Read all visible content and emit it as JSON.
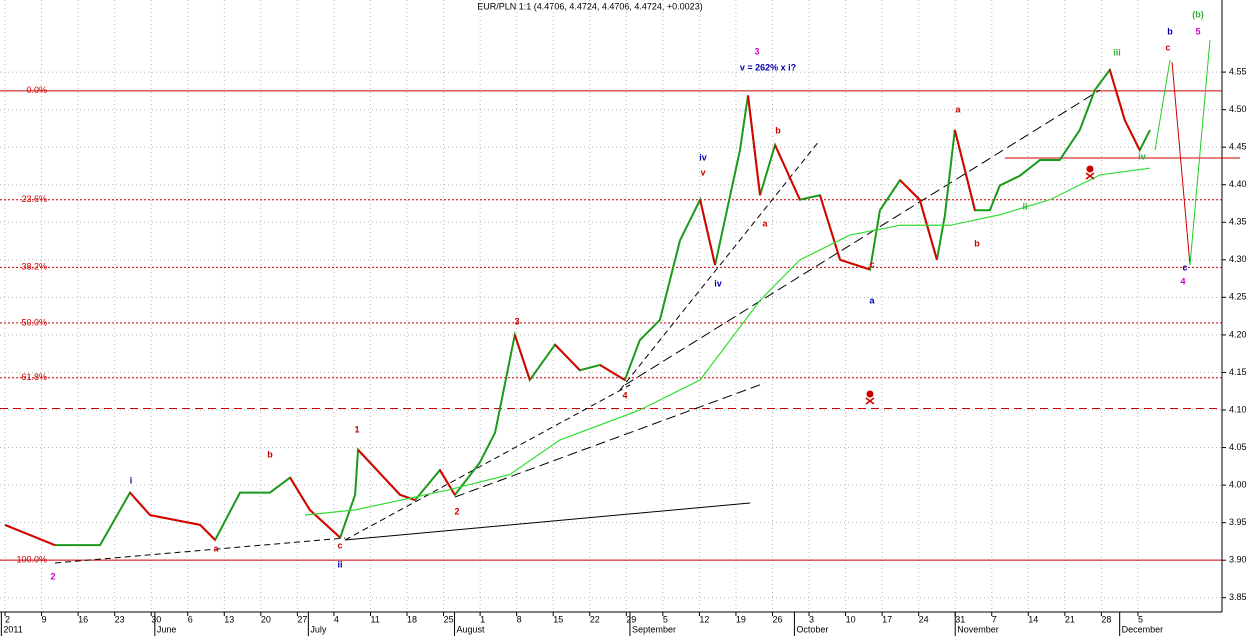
{
  "chart_data": {
    "type": "line",
    "title": "EUR/PLN 1:1 (4.4706, 4.4724, 4.4706, 4.4724, +0.0023)",
    "xlim": [
      -0.137,
      33.3
    ],
    "ylim": [
      3.831,
      4.646
    ],
    "yticks": [
      3.85,
      {
        "value": 3.9,
        "label": "3.90"
      },
      3.95,
      {
        "value": 4.0,
        "label": "4.00"
      },
      4.05,
      {
        "value": 4.1,
        "label": "4.10"
      },
      4.15,
      {
        "value": 4.2,
        "label": "4.20"
      },
      4.25,
      {
        "value": 4.3,
        "label": "4.30"
      },
      4.35,
      {
        "value": 4.4,
        "label": "4.40"
      },
      4.45,
      {
        "value": 4.5,
        "label": "4.50"
      },
      4.55
    ],
    "xticks": [
      {
        "value": 0,
        "label": "2"
      },
      {
        "value": 1,
        "label": "9"
      },
      {
        "value": 2,
        "label": "16"
      },
      {
        "value": 3,
        "label": "23"
      },
      {
        "value": 4,
        "label": "30"
      },
      {
        "value": 5,
        "label": "6"
      },
      {
        "value": 6,
        "label": "13"
      },
      {
        "value": 7,
        "label": "20"
      },
      {
        "value": 8,
        "label": "27"
      },
      {
        "value": 9,
        "label": "4"
      },
      {
        "value": 10,
        "label": "11"
      },
      {
        "value": 11,
        "label": "18"
      },
      {
        "value": 12,
        "label": "25"
      },
      {
        "value": 13,
        "label": "1"
      },
      {
        "value": 14,
        "label": "8"
      },
      {
        "value": 15,
        "label": "15"
      },
      {
        "value": 16,
        "label": "22"
      },
      {
        "value": 17,
        "label": "29"
      },
      {
        "value": 18,
        "label": "5"
      },
      {
        "value": 19,
        "label": "12"
      },
      {
        "value": 20,
        "label": "19"
      },
      {
        "value": 21,
        "label": "26"
      },
      {
        "value": 22,
        "label": "3"
      },
      {
        "value": 23,
        "label": "10"
      },
      {
        "value": 24,
        "label": "17"
      },
      {
        "value": 25,
        "label": "24"
      },
      {
        "value": 26,
        "label": "31"
      },
      {
        "value": 27,
        "label": "7"
      },
      {
        "value": 28,
        "label": "14"
      },
      {
        "value": 29,
        "label": "21"
      },
      {
        "value": 30,
        "label": "28"
      },
      {
        "value": 31,
        "label": "5"
      }
    ],
    "month_labels": [
      {
        "value": -0.1,
        "label": "2011"
      },
      {
        "value": 4.1,
        "label": "June"
      },
      {
        "value": 8.3,
        "label": "July"
      },
      {
        "value": 12.3,
        "label": "August"
      },
      {
        "value": 17.1,
        "label": "September"
      },
      {
        "value": 21.6,
        "label": "October"
      },
      {
        "value": 26.0,
        "label": "November"
      },
      {
        "value": 30.5,
        "label": "December"
      }
    ],
    "grid": true,
    "series": [
      {
        "color": "#1a9a1a",
        "down_color": "#dd0000",
        "x": [
          0,
          1.37,
          2.6,
          3.42,
          3.97,
          5.34,
          5.75,
          6.43,
          7.25,
          7.8,
          8.34,
          9.17,
          9.58,
          9.66,
          10.81,
          11.22,
          11.9,
          12.31,
          12.99,
          13.41,
          13.95,
          14.36,
          15.05,
          15.73,
          16.28,
          16.96,
          17.37,
          17.92,
          18.47,
          19.02,
          19.43,
          20.11,
          20.33,
          20.66,
          21.07,
          21.75,
          22.3,
          22.85,
          23.67,
          23.94,
          24.49,
          25.03,
          25.5,
          25.72,
          25.99,
          26.54,
          26.95,
          27.22,
          27.77,
          28.32,
          28.86,
          29.41,
          29.82,
          30.23,
          30.64,
          31.05,
          31.33
        ],
        "values": [
          3.947,
          3.92,
          3.92,
          3.99,
          3.96,
          3.947,
          3.927,
          3.99,
          3.99,
          4.01,
          3.967,
          3.93,
          3.987,
          4.047,
          3.987,
          3.98,
          4.02,
          3.987,
          4.03,
          4.07,
          4.2,
          4.14,
          4.187,
          4.153,
          4.16,
          4.14,
          4.193,
          4.22,
          4.326,
          4.38,
          4.293,
          4.446,
          4.519,
          4.386,
          4.453,
          4.38,
          4.386,
          4.3,
          4.287,
          4.366,
          4.406,
          4.38,
          4.3,
          4.36,
          4.473,
          4.366,
          4.366,
          4.399,
          4.412,
          4.433,
          4.433,
          4.473,
          4.526,
          4.553,
          4.486,
          4.446,
          4.473
        ]
      },
      {
        "color": "#33dd33",
        "x": [
          8.21,
          9.58,
          12.17,
          13.81,
          15.18,
          17.37,
          19.02,
          20.66,
          21.75,
          23.12,
          24.49,
          25.86,
          27.22,
          28.59,
          29.96,
          31.33
        ],
        "values": [
          3.96,
          3.967,
          3.994,
          4.014,
          4.06,
          4.1,
          4.14,
          4.246,
          4.3,
          4.333,
          4.346,
          4.346,
          4.36,
          4.38,
          4.413,
          4.422
        ]
      }
    ],
    "fib_levels": [
      {
        "value": 4.525,
        "label": "0.0%",
        "style": "solid"
      },
      {
        "value": 4.38,
        "label": "23.6%",
        "style": "dotted"
      },
      {
        "value": 4.29,
        "label": "38.2%",
        "style": "dotted"
      },
      {
        "value": 4.216,
        "label": "50.0%",
        "style": "dotted"
      },
      {
        "value": 4.143,
        "label": "61.8%",
        "style": "dotted"
      },
      {
        "value": 3.9,
        "label": "100.0%",
        "style": "solid"
      }
    ],
    "reference_lines": [
      {
        "value": 4.102,
        "color": "#cc0000",
        "style": "dashed"
      }
    ],
    "annotations": [
      {
        "text": "2",
        "color": "#cc00cc"
      },
      {
        "text": "i",
        "color": "#0000aa"
      },
      {
        "text": "a",
        "color": "#cc0000"
      },
      {
        "text": "b",
        "color": "#cc0000"
      },
      {
        "text": "c",
        "color": "#cc0000"
      },
      {
        "text": "ii",
        "color": "#0000aa"
      },
      {
        "text": "1",
        "color": "#cc0000"
      },
      {
        "text": "2",
        "color": "#cc0000"
      },
      {
        "text": "3",
        "color": "#cc0000"
      },
      {
        "text": "4",
        "color": "#cc0000"
      },
      {
        "text": "iv",
        "color": "#0000aa"
      },
      {
        "text": "v",
        "color": "#cc0000"
      },
      {
        "text": "iv",
        "color": "#0000aa"
      },
      {
        "text": "3",
        "color": "#cc00cc"
      },
      {
        "text": "v = 262% x i?",
        "color": "#0000aa"
      },
      {
        "text": "b",
        "color": "#cc0000"
      },
      {
        "text": "a",
        "color": "#cc0000"
      },
      {
        "text": "c",
        "color": "#cc0000"
      },
      {
        "text": "a",
        "color": "#0000aa"
      },
      {
        "text": "a",
        "color": "#cc0000"
      },
      {
        "text": "b",
        "color": "#cc0000"
      },
      {
        "text": "ii",
        "color": "#33aa33"
      },
      {
        "text": "iii",
        "color": "#33aa33"
      },
      {
        "text": "iv",
        "color": "#33aa33"
      },
      {
        "text": "c",
        "color": "#cc0000"
      },
      {
        "text": "b",
        "color": "#0000aa"
      },
      {
        "text": "(b)",
        "color": "#33aa33"
      },
      {
        "text": "5",
        "color": "#cc00cc"
      },
      {
        "text": "c",
        "color": "#0000aa"
      },
      {
        "text": "4",
        "color": "#cc00cc"
      }
    ]
  }
}
